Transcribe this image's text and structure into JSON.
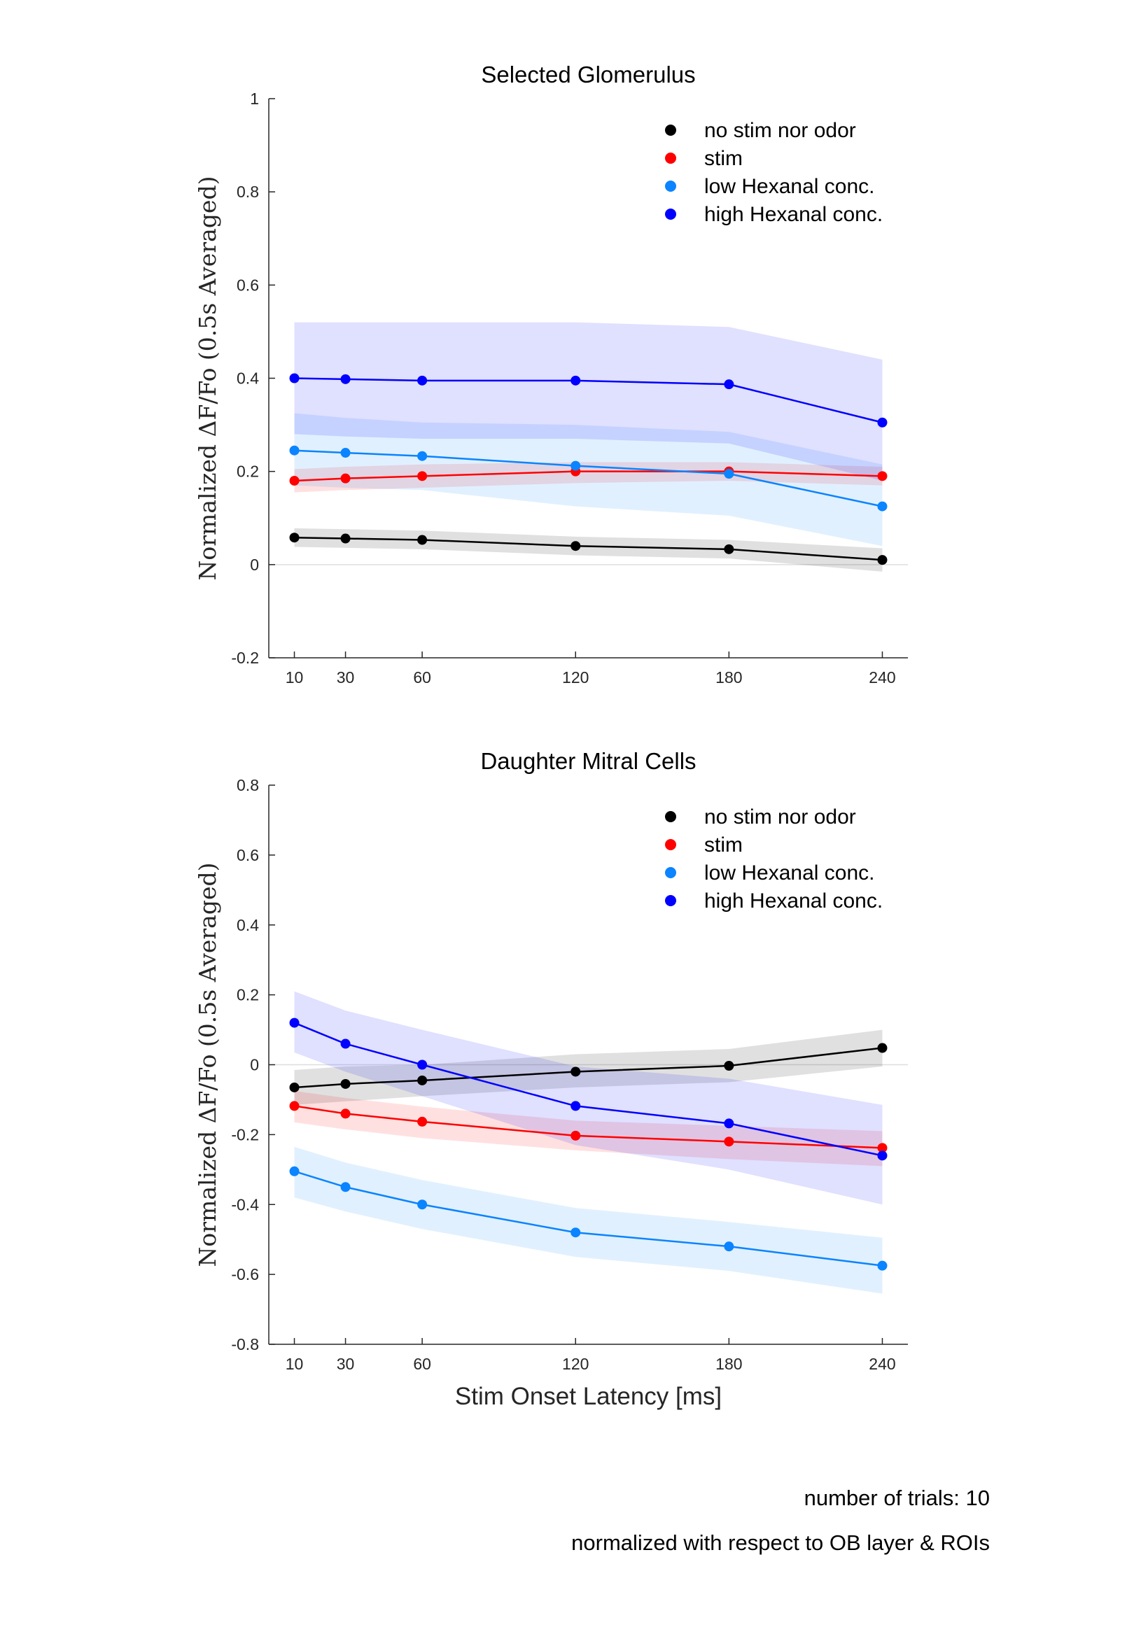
{
  "chart_data": [
    {
      "type": "line",
      "title": "Selected Glomerulus",
      "xlabel": "",
      "ylabel": "Normalized ΔF/Fo (0.5s Averaged)",
      "ylim": [
        -0.2,
        1
      ],
      "yticks": [
        -0.2,
        0,
        0.2,
        0.4,
        0.6,
        0.8,
        1
      ],
      "ytick_labels": [
        "-0.2",
        "0",
        "0.2",
        "0.4",
        "0.6",
        "0.8",
        "1"
      ],
      "x": [
        10,
        30,
        60,
        120,
        180,
        240
      ],
      "xtick_labels": [
        "10",
        "30",
        "60",
        "120",
        "180",
        "240"
      ],
      "legend_position": "top-right",
      "series": [
        {
          "name": "no stim nor odor",
          "color": "#000000",
          "values": [
            0.058,
            0.056,
            0.053,
            0.04,
            0.033,
            0.01
          ],
          "lower": [
            0.038,
            0.036,
            0.033,
            0.02,
            0.013,
            -0.015
          ],
          "upper": [
            0.078,
            0.076,
            0.073,
            0.06,
            0.053,
            0.035
          ]
        },
        {
          "name": "stim",
          "color": "#ff0000",
          "values": [
            0.18,
            0.185,
            0.19,
            0.2,
            0.2,
            0.19
          ],
          "lower": [
            0.155,
            0.16,
            0.165,
            0.175,
            0.18,
            0.17
          ],
          "upper": [
            0.205,
            0.21,
            0.215,
            0.22,
            0.22,
            0.21
          ]
        },
        {
          "name": "low Hexanal conc.",
          "color": "#0a84ff",
          "values": [
            0.245,
            0.24,
            0.233,
            0.212,
            0.195,
            0.125
          ],
          "lower": [
            0.17,
            0.165,
            0.16,
            0.125,
            0.105,
            0.04
          ],
          "upper": [
            0.325,
            0.315,
            0.305,
            0.3,
            0.285,
            0.215
          ]
        },
        {
          "name": "high Hexanal conc.",
          "color": "#0000ff",
          "values": [
            0.4,
            0.398,
            0.395,
            0.395,
            0.387,
            0.305
          ],
          "lower": [
            0.28,
            0.275,
            0.27,
            0.27,
            0.26,
            0.18
          ],
          "upper": [
            0.52,
            0.52,
            0.52,
            0.52,
            0.51,
            0.44
          ]
        }
      ]
    },
    {
      "type": "line",
      "title": "Daughter Mitral Cells",
      "xlabel": "Stim Onset Latency [ms]",
      "ylabel": "Normalized ΔF/Fo (0.5s Averaged)",
      "ylim": [
        -0.8,
        0.8
      ],
      "yticks": [
        -0.8,
        -0.6,
        -0.4,
        -0.2,
        0,
        0.2,
        0.4,
        0.6,
        0.8
      ],
      "ytick_labels": [
        "-0.8",
        "-0.6",
        "-0.4",
        "-0.2",
        "0",
        "0.2",
        "0.4",
        "0.6",
        "0.8"
      ],
      "x": [
        10,
        30,
        60,
        120,
        180,
        240
      ],
      "xtick_labels": [
        "10",
        "30",
        "60",
        "120",
        "180",
        "240"
      ],
      "legend_position": "top-right",
      "series": [
        {
          "name": "no stim nor odor",
          "color": "#000000",
          "values": [
            -0.065,
            -0.055,
            -0.045,
            -0.02,
            -0.003,
            0.048
          ],
          "lower": [
            -0.115,
            -0.105,
            -0.09,
            -0.065,
            -0.05,
            -0.005
          ],
          "upper": [
            -0.015,
            -0.005,
            0.0,
            0.03,
            0.045,
            0.1
          ]
        },
        {
          "name": "stim",
          "color": "#ff0000",
          "values": [
            -0.118,
            -0.14,
            -0.163,
            -0.203,
            -0.22,
            -0.238
          ],
          "lower": [
            -0.165,
            -0.185,
            -0.21,
            -0.245,
            -0.27,
            -0.29
          ],
          "upper": [
            -0.075,
            -0.095,
            -0.12,
            -0.16,
            -0.175,
            -0.19
          ]
        },
        {
          "name": "low Hexanal conc.",
          "color": "#0a84ff",
          "values": [
            -0.305,
            -0.35,
            -0.4,
            -0.48,
            -0.52,
            -0.575
          ],
          "lower": [
            -0.38,
            -0.42,
            -0.47,
            -0.55,
            -0.59,
            -0.655
          ],
          "upper": [
            -0.235,
            -0.28,
            -0.33,
            -0.41,
            -0.45,
            -0.495
          ]
        },
        {
          "name": "high Hexanal conc.",
          "color": "#0000ff",
          "values": [
            0.12,
            0.06,
            0.0,
            -0.118,
            -0.168,
            -0.26
          ],
          "lower": [
            0.035,
            -0.02,
            -0.09,
            -0.23,
            -0.3,
            -0.4
          ],
          "upper": [
            0.21,
            0.155,
            0.1,
            -0.005,
            -0.04,
            -0.115
          ]
        }
      ]
    }
  ],
  "footnotes": {
    "trials": "number of trials: 10",
    "normalization": "normalized with respect to OB layer & ROIs"
  }
}
